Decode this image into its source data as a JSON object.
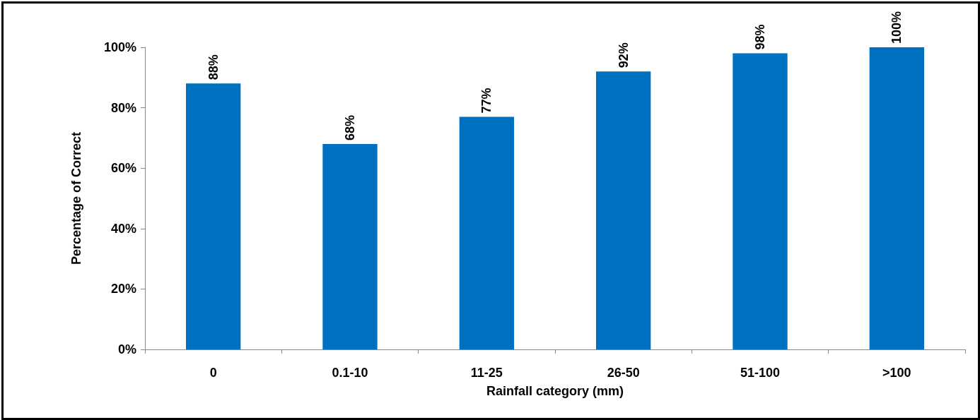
{
  "chart_data": {
    "type": "bar",
    "xlabel": "Rainfall category (mm)",
    "ylabel": "Percentage of Correct",
    "categories": [
      "0",
      "0.1-10",
      "11-25",
      "26-50",
      "51-100",
      ">100"
    ],
    "values": [
      88,
      68,
      77,
      92,
      98,
      100
    ],
    "value_labels": [
      "88%",
      "68%",
      "77%",
      "92%",
      "98%",
      "100%"
    ],
    "color": "#0070c0",
    "ylim": [
      0,
      100
    ],
    "yticks": [
      {
        "value": 0,
        "label": "0%"
      },
      {
        "value": 20,
        "label": "20%"
      },
      {
        "value": 40,
        "label": "40%"
      },
      {
        "value": 60,
        "label": "60%"
      },
      {
        "value": 80,
        "label": "80%"
      },
      {
        "value": 100,
        "label": "100%"
      }
    ],
    "grid": false
  }
}
